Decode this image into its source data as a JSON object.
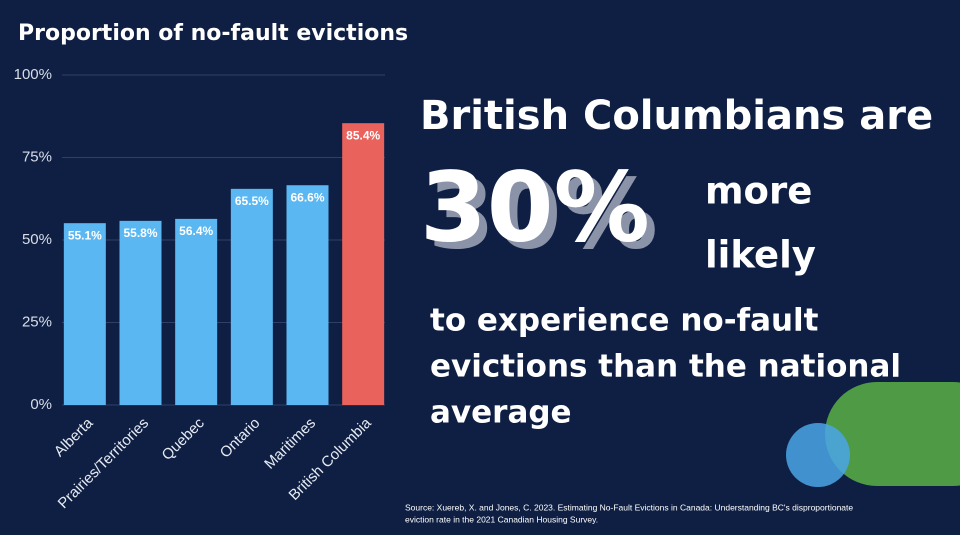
{
  "chart_data": {
    "type": "bar",
    "title": "Proportion of no-fault evictions",
    "categories": [
      "Alberta",
      "Prairies/Territories",
      "Quebec",
      "Ontario",
      "Maritimes",
      "British Columbia"
    ],
    "values": [
      55.1,
      55.8,
      56.4,
      65.5,
      66.6,
      85.4
    ],
    "value_labels": [
      "55.1%",
      "55.8%",
      "56.4%",
      "65.5%",
      "66.6%",
      "85.4%"
    ],
    "colors": [
      "#5ab7f2",
      "#5ab7f2",
      "#5ab7f2",
      "#5ab7f2",
      "#5ab7f2",
      "#e9625c"
    ],
    "ylim": [
      0,
      100
    ],
    "yticks": [
      {
        "value": 0,
        "label": "0%"
      },
      {
        "value": 25,
        "label": "25%"
      },
      {
        "value": 50,
        "label": "50%"
      },
      {
        "value": 75,
        "label": "75%"
      },
      {
        "value": 100,
        "label": "100%"
      }
    ],
    "grid": true
  },
  "headline": {
    "lead": "British Columbians are",
    "figure": "30%",
    "figure_side": [
      "more",
      "likely"
    ],
    "body": [
      "to experience no-fault",
      "evictions than the national",
      "average"
    ]
  },
  "source": [
    "Source: Xuereb, X. and Jones, C. 2023. Estimating No-Fault Evictions in Canada: Understanding BC's disproportionate",
    "eviction rate in the 2021 Canadian Housing Survey."
  ]
}
